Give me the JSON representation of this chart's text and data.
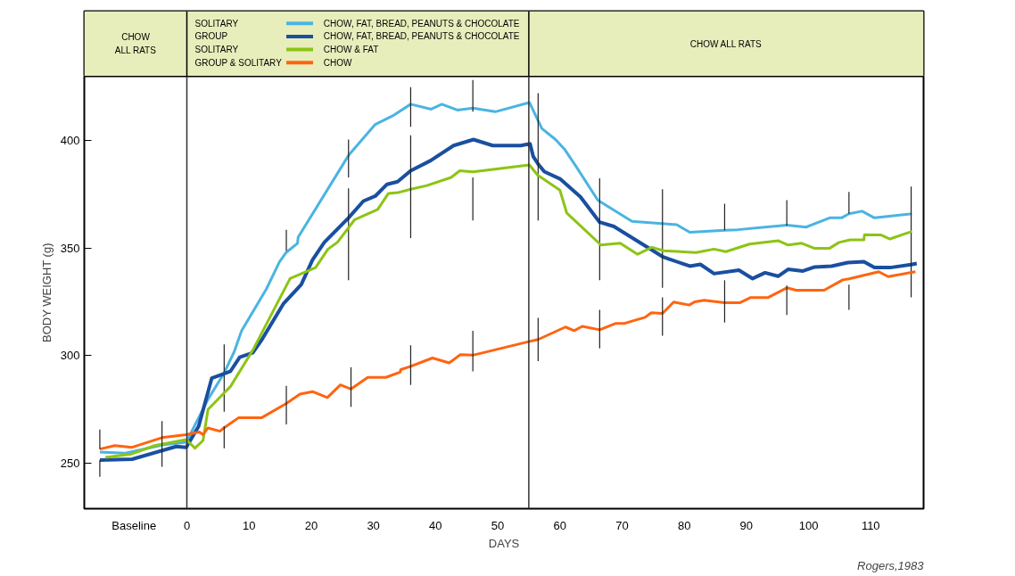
{
  "chart_data": {
    "type": "line",
    "xlabel": "DAYS",
    "ylabel": "BODY WEIGHT (g)",
    "xlim": [
      -16.5,
      118.5
    ],
    "ylim": [
      228.9,
      429.8
    ],
    "xticks": [
      {
        "value": -8.5,
        "label": "Baseline"
      },
      0,
      10,
      20,
      30,
      40,
      50,
      60,
      70,
      80,
      90,
      100,
      110
    ],
    "yticks": [
      250,
      300,
      350,
      400
    ],
    "grid": false,
    "legend": "top",
    "marker": "none",
    "line_style": "solid",
    "annotations": [
      "CHOW\nALL RATS",
      "SOLITARY",
      "GROUP",
      "SOLITARY",
      "GROUP & SOLITARY",
      "CHOW ALL RATS",
      "Rogers,1983"
    ],
    "ref_lines": [
      {
        "axis": "x",
        "value": 0,
        "label": null,
        "color": "#333333"
      },
      {
        "axis": "x",
        "value": 55,
        "label": null,
        "color": "#333333"
      }
    ],
    "series": [
      {
        "name": "CHOW, FAT, BREAD, PEANUTS & CHOCOLATE",
        "color": "#4ab4e2",
        "x": [
          -14,
          -9.9,
          -3.7,
          -0.1,
          3.4,
          6,
          7.6,
          8.8,
          12.8,
          14.9,
          16,
          17.8,
          17.9,
          26,
          30.3,
          33.1,
          36,
          39.3,
          41,
          43.5,
          46,
          49.6,
          55.1,
          57.1,
          59.3,
          60.8,
          62.6,
          66.1,
          71.6,
          78.8,
          80.9,
          86.5,
          88.6,
          96.5,
          99.6,
          103.4,
          105.3,
          106.5,
          108.6,
          110.6,
          116.6
        ],
        "values": [
          255.2,
          254.7,
          258.6,
          259.8,
          279.7,
          292,
          301.7,
          311.5,
          331,
          343.6,
          348,
          352.2,
          355,
          393,
          407.4,
          411.4,
          416.8,
          414.5,
          416.8,
          414.1,
          415,
          413.3,
          417.6,
          405.5,
          400.4,
          395.7,
          387.9,
          372.2,
          362.4,
          360.8,
          357.3,
          358.2,
          358.5,
          360.6,
          359.7,
          364,
          364,
          365.9,
          367.1,
          364,
          365.9
        ],
        "errors": [
          null,
          null,
          null,
          null,
          null,
          [
            273.9,
            305.2
          ],
          null,
          null,
          null,
          null,
          [
            348.7,
            358.5
          ],
          null,
          null,
          [
            382.8,
            400.4
          ],
          null,
          null,
          [
            406.3,
            424.7
          ],
          null,
          null,
          null,
          [
            413.3,
            428
          ],
          null,
          null,
          null,
          null,
          null,
          null,
          null,
          null,
          null,
          null,
          [
            358.2,
            370.6
          ],
          null,
          [
            360.4,
            372.2
          ],
          null,
          null,
          null,
          [
            365.9,
            376.1
          ],
          null,
          null,
          null
        ]
      },
      {
        "name": "CHOW, FAT, BREAD, PEANUTS & CHOCOLATE",
        "color": "#1a4fa0",
        "x": [
          -14,
          -8.8,
          -1.7,
          -0.1,
          1.9,
          4,
          7,
          8.5,
          10.6,
          12.1,
          15.5,
          18.4,
          20.2,
          22.1,
          26,
          28.4,
          30.3,
          32.2,
          33.9,
          36,
          39.2,
          42.9,
          46.1,
          49.2,
          53.7,
          55.2,
          55.7,
          56.5,
          57.5,
          60.1,
          63.3,
          66.4,
          68.7,
          76.5,
          77.6,
          80.9,
          82.6,
          84.8,
          88.8,
          91,
          93,
          95.1,
          96.7,
          99.1,
          101,
          103.7,
          106.3,
          108.9,
          110.6,
          113.1,
          116.5,
          117.4
        ],
        "values": [
          251.5,
          251.9,
          257.8,
          257.4,
          267.2,
          289.5,
          292.7,
          299.3,
          301.3,
          307.6,
          324,
          333,
          344.4,
          352.6,
          364,
          371.8,
          374.1,
          379.6,
          380.8,
          385.9,
          390.6,
          397.6,
          400.4,
          397.6,
          397.6,
          398.4,
          392.6,
          389,
          385.5,
          382,
          373.8,
          362,
          360,
          346,
          344.8,
          341.6,
          342.4,
          338.1,
          339.7,
          335.8,
          338.5,
          336.9,
          340.1,
          339.3,
          341.2,
          341.6,
          343.2,
          343.6,
          340.9,
          340.9,
          342.3,
          342.8
        ],
        "errors": [
          [
            243.7,
            251.5
          ],
          null,
          null,
          null,
          null,
          null,
          null,
          null,
          null,
          null,
          null,
          null,
          null,
          null,
          [
            335,
            377.7
          ],
          null,
          null,
          null,
          null,
          null,
          null,
          null,
          null,
          null,
          null,
          null,
          null,
          [
            362.8,
            421.9
          ],
          null,
          null,
          null,
          [
            335,
            382.4
          ],
          null,
          [
            331.5,
            377.3
          ],
          null,
          null,
          null,
          null,
          null,
          null,
          null,
          null,
          null,
          null,
          null,
          null,
          null,
          null,
          null,
          null,
          [
            327.1,
            378.5
          ],
          null
        ]
      },
      {
        "name": "CHOW & FAT",
        "color": "#8dc414",
        "x": [
          -13.1,
          -8.9,
          -5.2,
          -0.1,
          1.3,
          2.6,
          3.4,
          7,
          10.6,
          16.6,
          20.7,
          22.7,
          24.2,
          27,
          30.7,
          32.4,
          33.9,
          36,
          38.6,
          42.5,
          43.9,
          46,
          55.1,
          56.4,
          60,
          61.1,
          66.6,
          69.7,
          72.5,
          74.8,
          76.7,
          81.9,
          84.8,
          86.7,
          90.5,
          95.1,
          96.7,
          98.9,
          100.9,
          103.4,
          104.9,
          106.7,
          108.9,
          109,
          111.6,
          113.1,
          116.6
        ],
        "values": [
          252.7,
          254.3,
          258.2,
          261,
          257,
          260.6,
          275,
          285.6,
          302.5,
          335.8,
          340.9,
          349.5,
          352.6,
          363.2,
          367.9,
          375.3,
          375.7,
          377.3,
          379,
          382.8,
          385.9,
          385.4,
          388.6,
          383.9,
          376.9,
          366.3,
          351.4,
          352.2,
          347.1,
          350.3,
          348.7,
          347.9,
          349.5,
          348.3,
          351.8,
          353.4,
          351.4,
          352.2,
          349.9,
          349.9,
          352.6,
          353.8,
          353.8,
          356.2,
          356.1,
          354.2,
          357.7
        ],
        "errors": [
          null,
          null,
          null,
          null,
          null,
          null,
          null,
          null,
          null,
          null,
          null,
          null,
          null,
          null,
          null,
          null,
          null,
          [
            354.6,
            402.4
          ],
          null,
          null,
          null,
          [
            362.8,
            382.8
          ],
          null,
          null,
          null,
          null,
          null,
          null,
          null,
          null,
          null,
          null,
          null,
          null,
          null,
          null,
          null,
          null,
          null,
          null,
          null,
          null,
          null,
          null,
          null,
          null,
          null
        ]
      },
      {
        "name": "CHOW",
        "color": "#ff6410",
        "x": [
          -14,
          -11.6,
          -8.8,
          -4,
          -0.1,
          2,
          2.6,
          3.4,
          5.3,
          6,
          8.3,
          12,
          16,
          18.2,
          20.2,
          22.6,
          24.7,
          26.4,
          29.1,
          32,
          34.3,
          34.4,
          36,
          39.5,
          42.2,
          44,
          46,
          55,
          56.5,
          60.9,
          62.3,
          63.6,
          66.4,
          69,
          70.4,
          73.7,
          74.7,
          76.5,
          78.3,
          80.8,
          81.7,
          83.2,
          86.5,
          89,
          90.7,
          93.5,
          96.5,
          98,
          102.5,
          105.5,
          106.5,
          111.3,
          112.8,
          117.2
        ],
        "values": [
          256.6,
          258.2,
          257.4,
          261.9,
          263.3,
          264.5,
          263.3,
          266.4,
          264.9,
          266.5,
          271.1,
          271.1,
          277.8,
          282.1,
          283.3,
          280.5,
          286.4,
          284.5,
          289.9,
          289.9,
          292.3,
          293.5,
          295,
          298.9,
          296.6,
          300.5,
          300.2,
          306.5,
          307.5,
          313.3,
          311.6,
          313.6,
          312,
          315,
          315,
          317.8,
          319.9,
          319.6,
          324.9,
          323.5,
          325,
          325.7,
          324.6,
          324.6,
          327,
          327,
          331.5,
          330.4,
          330.4,
          335.2,
          335.7,
          339,
          336.7,
          339
        ],
        "errors": [
          [
            256.6,
            265.7
          ],
          null,
          null,
          [
            248.4,
            269.6
          ],
          null,
          null,
          null,
          null,
          null,
          [
            257,
            267.2
          ],
          null,
          null,
          [
            268,
            286
          ],
          null,
          null,
          null,
          null,
          [
            276.2,
            294.6
          ],
          null,
          null,
          null,
          null,
          [
            286.4,
            304.8
          ],
          null,
          null,
          null,
          [
            292.7,
            311.5
          ],
          null,
          [
            297.5,
            317.5
          ],
          null,
          null,
          null,
          [
            303.4,
            321.3
          ],
          null,
          null,
          null,
          null,
          [
            309.3,
            327.1
          ],
          null,
          null,
          null,
          null,
          [
            315.4,
            335
          ],
          null,
          null,
          null,
          [
            318.9,
            332.6
          ],
          null,
          null,
          null,
          [
            321.3,
            333
          ],
          null,
          null,
          null
        ]
      }
    ]
  }
}
